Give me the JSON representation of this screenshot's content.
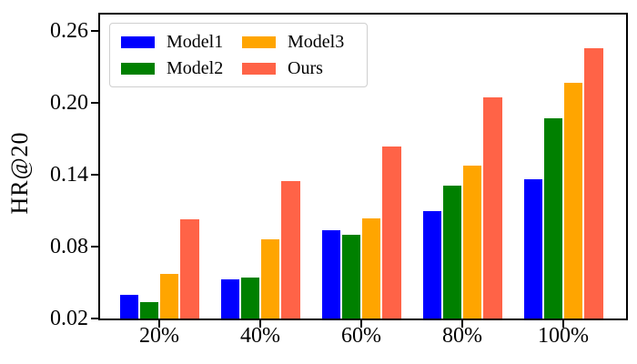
{
  "figure": {
    "background": "#ffffff",
    "text_color": "#000000",
    "spine_color": "#000000",
    "legend_border_color": "#cfcfcf"
  },
  "chart_data": {
    "type": "bar",
    "title": "",
    "xlabel": "",
    "ylabel": "HR@20",
    "categories": [
      "20%",
      "40%",
      "60%",
      "80%",
      "100%"
    ],
    "series": [
      {
        "name": "Model1",
        "color": "#0000FF",
        "values": [
          0.04,
          0.053,
          0.094,
          0.11,
          0.136
        ]
      },
      {
        "name": "Model2",
        "color": "#008000",
        "values": [
          0.034,
          0.054,
          0.09,
          0.131,
          0.187
        ]
      },
      {
        "name": "Model3",
        "color": "#FFA500",
        "values": [
          0.057,
          0.086,
          0.104,
          0.148,
          0.217
        ]
      },
      {
        "name": "Ours",
        "color": "#FF6347",
        "values": [
          0.103,
          0.135,
          0.164,
          0.205,
          0.246
        ]
      }
    ],
    "yticks": [
      0.02,
      0.08,
      0.14,
      0.2,
      0.26
    ],
    "ytick_labels": [
      "0.02",
      "0.08",
      "0.14",
      "0.20",
      "0.26"
    ],
    "ylim": [
      0.02,
      0.274
    ],
    "bar_baseline": 0.02,
    "grid": false,
    "legend_position": "upper left",
    "legend_columns": 2,
    "legend_column_order": [
      [
        "Model1",
        "Model2"
      ],
      [
        "Model3",
        "Ours"
      ]
    ]
  }
}
